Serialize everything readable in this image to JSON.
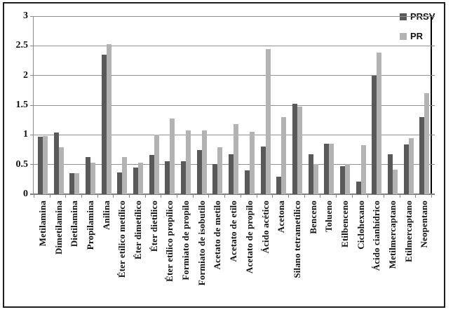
{
  "chart_data": {
    "type": "bar",
    "title": "",
    "xlabel": "",
    "ylabel": "",
    "categories": [
      "Metilamina",
      "Dimetilamina",
      "Dietilamina",
      "Propilamina",
      "Anilina",
      "Éter etílico metílico",
      "Éter dimetílico",
      "Éter dietílico",
      "Éter etílico propílico",
      "Formiato de propilo",
      "Formiato de isobutilo",
      "Acetato de metilo",
      "Acetato de etilo",
      "Acetato de propilo",
      "Ácido acético",
      "Acetona",
      "Silano tetrametílico",
      "Benceno",
      "Tolueno",
      "Etilbenceno",
      "Ciclohexano",
      "Ácido cianhídrico",
      "Metilmercaptano",
      "Etilmercaptano",
      "Neopentano"
    ],
    "series": [
      {
        "name": "PRSV",
        "color": "#595959",
        "values": [
          0.97,
          1.04,
          0.35,
          0.63,
          2.35,
          0.37,
          0.45,
          0.66,
          0.56,
          0.55,
          0.75,
          0.51,
          0.67,
          0.4,
          0.8,
          0.29,
          1.52,
          0.67,
          0.85,
          0.47,
          0.21,
          2.0,
          0.67,
          0.84,
          1.3
        ]
      },
      {
        "name": "PR",
        "color": "#b3b3b3",
        "values": [
          0.98,
          0.79,
          0.35,
          0.53,
          2.53,
          0.63,
          0.53,
          1.0,
          1.28,
          1.07,
          1.07,
          0.79,
          1.18,
          1.05,
          2.45,
          1.3,
          1.48,
          0.51,
          0.85,
          0.51,
          0.83,
          2.39,
          0.41,
          0.95,
          1.7
        ]
      }
    ],
    "ylim": [
      0,
      3
    ],
    "ytick_step": 0.5,
    "ytick_labels": [
      "0",
      "0.5",
      "1",
      "1.5",
      "2",
      "2.5",
      "3"
    ],
    "grid": true,
    "gridline_color": "#909090",
    "axis_color": "#8a8a8a",
    "plot_right_border_color": "#000000",
    "legend_position": "top-right"
  }
}
